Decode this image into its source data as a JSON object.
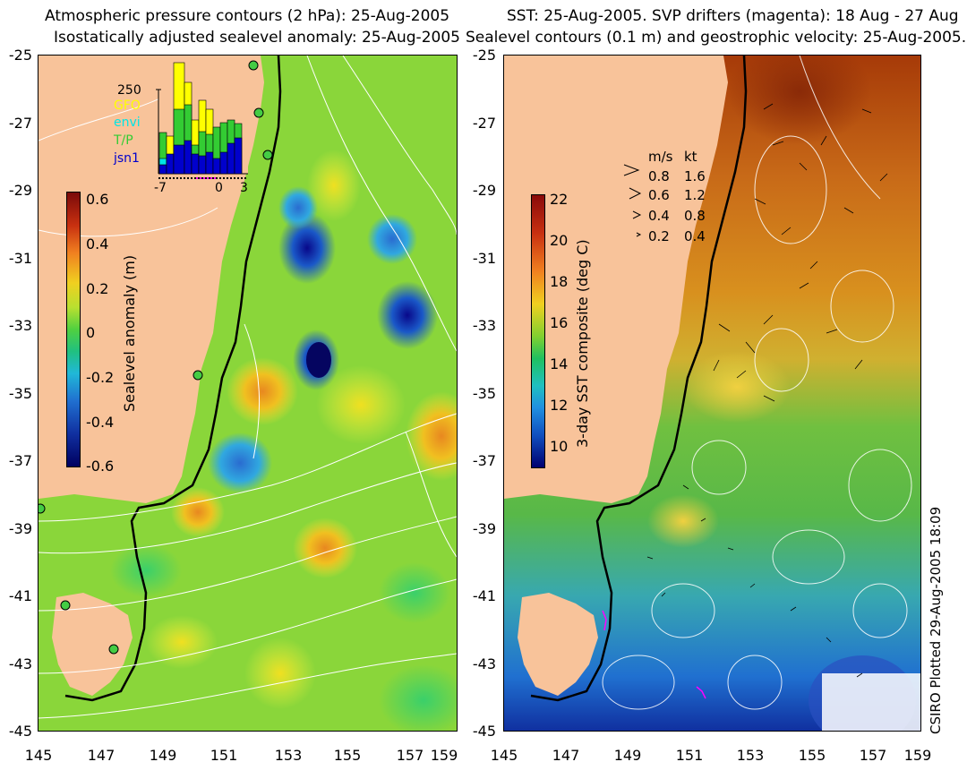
{
  "left_panel": {
    "title_line1": "Atmospheric pressure contours (2 hPa): 25-Aug-2005",
    "title_line2": "Isostatically adjusted sealevel anomaly: 25-Aug-2005",
    "colorbar": {
      "title": "Sealevel anomaly (m)",
      "ticks": [
        "0.6",
        "0.4",
        "0.2",
        "0",
        "-0.2",
        "-0.4",
        "-0.6"
      ]
    },
    "histogram": {
      "count_label": "250",
      "x_ticks": [
        "-7",
        "0",
        "3"
      ],
      "legend": [
        {
          "label": "GFO",
          "color": "#ffff00"
        },
        {
          "label": "envi",
          "color": "#00e5e5"
        },
        {
          "label": "T/P",
          "color": "#33cc33"
        },
        {
          "label": "jsn1",
          "color": "#0000cc"
        }
      ]
    }
  },
  "right_panel": {
    "title_line1": "SST: 25-Aug-2005. SVP drifters (magenta): 18 Aug - 27 Aug",
    "title_line2": "Sealevel contours (0.1 m) and geostrophic velocity: 25-Aug-2005.",
    "colorbar": {
      "title": "3-day SST composite (deg C)",
      "ticks": [
        "22",
        "20",
        "18",
        "16",
        "14",
        "12",
        "10"
      ]
    },
    "velocity_legend": {
      "header_ms": "m/s",
      "header_kt": "kt",
      "rows": [
        {
          "ms": "0.8",
          "kt": "1.6"
        },
        {
          "ms": "0.6",
          "kt": "1.2"
        },
        {
          "ms": "0.4",
          "kt": "0.8"
        },
        {
          "ms": "0.2",
          "kt": "0.4"
        }
      ]
    }
  },
  "axes": {
    "y_ticks": [
      "-25",
      "-27",
      "-29",
      "-31",
      "-33",
      "-35",
      "-37",
      "-39",
      "-41",
      "-43",
      "-45"
    ],
    "x_ticks": [
      "145",
      "147",
      "149",
      "151",
      "153",
      "155",
      "157",
      "159"
    ]
  },
  "credit": "CSIRO Plotted 29-Aug-2005 18:09",
  "colors": {
    "land": "#f8c39a",
    "coast_line": "#000000"
  }
}
